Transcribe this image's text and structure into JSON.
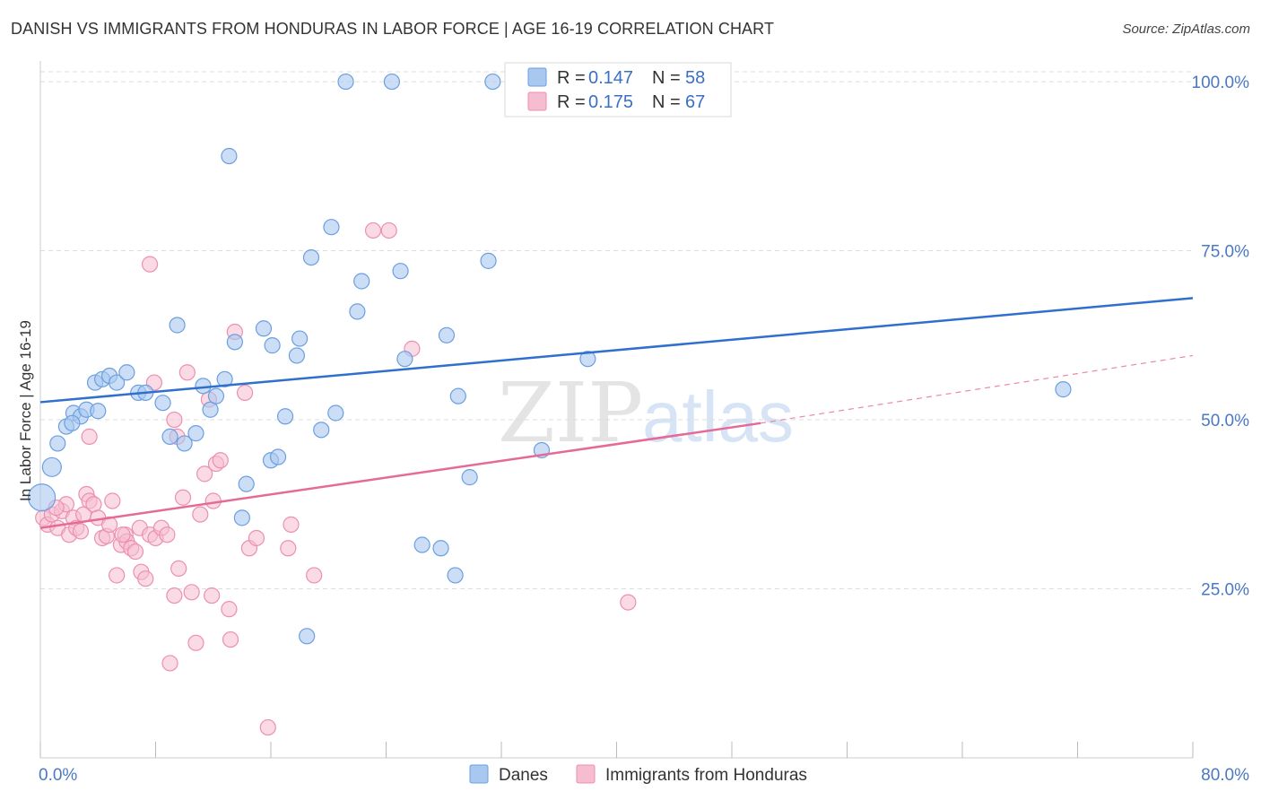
{
  "title": "DANISH VS IMMIGRANTS FROM HONDURAS IN LABOR FORCE | AGE 16-19 CORRELATION CHART",
  "source": "Source: ZipAtlas.com",
  "colors": {
    "danes_fill": "#a9c8f0",
    "danes_stroke": "#6b9fe0",
    "danes_line": "#2f6fce",
    "honduras_fill": "#f6bdd0",
    "honduras_stroke": "#ec8fb0",
    "honduras_line": "#e56a97",
    "grid": "#dddddd",
    "axis_text": "#4a78c4"
  },
  "legend": {
    "rows": [
      {
        "r_label": "R = ",
        "r_value": "0.147",
        "n_label": "N = ",
        "n_value": "58"
      },
      {
        "r_label": "R = ",
        "r_value": "0.175",
        "n_label": "N = ",
        "n_value": "67"
      }
    ]
  },
  "bottom_legend": [
    "Danes",
    "Immigrants from Honduras"
  ],
  "watermark": {
    "zip": "ZIP",
    "atlas": "atlas"
  },
  "chart_data": {
    "type": "scatter",
    "xlabel": "",
    "ylabel": "In Labor Force | Age 16-19",
    "xlim": [
      0,
      80
    ],
    "ylim": [
      0,
      102
    ],
    "x_tick_labels": [
      "0.0%",
      "80.0%"
    ],
    "y_ticks": [
      25,
      50,
      75,
      100
    ],
    "y_tick_labels": [
      "25.0%",
      "50.0%",
      "75.0%",
      "100.0%"
    ],
    "series": [
      {
        "name": "Danes",
        "R": 0.147,
        "N": 58,
        "trend": {
          "x_start": 0,
          "y_start": 52.6,
          "x_end": 80,
          "y_end": 68.0
        },
        "points": [
          [
            0.1,
            38.5
          ],
          [
            0.8,
            43
          ],
          [
            1.2,
            46.5
          ],
          [
            1.8,
            49
          ],
          [
            2.3,
            51
          ],
          [
            2.8,
            50.5
          ],
          [
            3.2,
            51.5
          ],
          [
            3.8,
            55.5
          ],
          [
            4.3,
            56
          ],
          [
            4.8,
            56.5
          ],
          [
            5.3,
            55.5
          ],
          [
            6.0,
            57
          ],
          [
            6.8,
            54
          ],
          [
            7.3,
            54
          ],
          [
            8.5,
            52.5
          ],
          [
            9.0,
            47.5
          ],
          [
            10.0,
            46.5
          ],
          [
            10.8,
            48
          ],
          [
            11.3,
            55
          ],
          [
            11.8,
            51.5
          ],
          [
            12.2,
            53.5
          ],
          [
            12.8,
            56
          ],
          [
            13.5,
            61.5
          ],
          [
            14.3,
            40.5
          ],
          [
            14.0,
            35.5
          ],
          [
            15.5,
            63.5
          ],
          [
            16.0,
            44
          ],
          [
            16.5,
            44.5
          ],
          [
            17.0,
            50.5
          ],
          [
            17.8,
            59.5
          ],
          [
            18.0,
            62
          ],
          [
            18.5,
            18
          ],
          [
            18.8,
            74
          ],
          [
            19.5,
            48.5
          ],
          [
            20.2,
            78.5
          ],
          [
            20.5,
            51
          ],
          [
            21.2,
            100
          ],
          [
            22.0,
            66
          ],
          [
            22.3,
            70.5
          ],
          [
            24.4,
            100
          ],
          [
            25.0,
            72
          ],
          [
            25.3,
            59
          ],
          [
            26.5,
            31.5
          ],
          [
            27.8,
            31
          ],
          [
            28.2,
            62.5
          ],
          [
            28.8,
            27
          ],
          [
            29.0,
            53.5
          ],
          [
            29.8,
            41.5
          ],
          [
            31.1,
            73.5
          ],
          [
            31.4,
            100
          ],
          [
            34.8,
            45.5
          ],
          [
            38.0,
            59
          ],
          [
            71.0,
            54.5
          ],
          [
            13.1,
            89
          ],
          [
            16.1,
            61
          ],
          [
            9.5,
            64
          ],
          [
            4.0,
            51.3
          ],
          [
            2.2,
            49.5
          ]
        ]
      },
      {
        "name": "Immigrants from Honduras",
        "R": 0.175,
        "N": 67,
        "trend": {
          "x_start": 0,
          "y_start": 34.0,
          "x_end": 50,
          "y_end": 49.5,
          "dash_x_end": 80,
          "dash_y_end": 59.5
        },
        "points": [
          [
            0.2,
            35.5
          ],
          [
            0.5,
            34.5
          ],
          [
            0.8,
            36
          ],
          [
            1.2,
            34
          ],
          [
            1.5,
            36.5
          ],
          [
            1.8,
            37.5
          ],
          [
            2.0,
            33
          ],
          [
            2.3,
            35.5
          ],
          [
            2.5,
            34
          ],
          [
            2.8,
            33.5
          ],
          [
            3.0,
            36
          ],
          [
            3.2,
            39
          ],
          [
            3.4,
            38
          ],
          [
            3.7,
            37.5
          ],
          [
            4.0,
            35.5
          ],
          [
            4.3,
            32.5
          ],
          [
            4.6,
            32.8
          ],
          [
            4.8,
            34.5
          ],
          [
            5.0,
            38
          ],
          [
            5.3,
            27
          ],
          [
            5.6,
            31.5
          ],
          [
            5.9,
            33
          ],
          [
            6.0,
            32
          ],
          [
            6.3,
            31
          ],
          [
            6.6,
            30.5
          ],
          [
            6.9,
            34
          ],
          [
            7.0,
            27.5
          ],
          [
            7.3,
            26.5
          ],
          [
            7.6,
            33
          ],
          [
            7.9,
            55.5
          ],
          [
            8.0,
            32.5
          ],
          [
            8.4,
            34
          ],
          [
            8.8,
            33
          ],
          [
            9.0,
            14
          ],
          [
            9.3,
            24
          ],
          [
            9.6,
            28
          ],
          [
            9.9,
            38.5
          ],
          [
            10.2,
            57
          ],
          [
            10.5,
            24.5
          ],
          [
            10.8,
            17
          ],
          [
            11.1,
            36
          ],
          [
            11.4,
            42
          ],
          [
            11.7,
            53
          ],
          [
            11.9,
            24
          ],
          [
            12.0,
            38
          ],
          [
            12.2,
            43.5
          ],
          [
            12.5,
            44
          ],
          [
            13.1,
            22
          ],
          [
            13.2,
            17.5
          ],
          [
            13.5,
            63
          ],
          [
            14.2,
            54
          ],
          [
            14.5,
            31
          ],
          [
            15.0,
            32.5
          ],
          [
            15.8,
            4.5
          ],
          [
            17.2,
            31
          ],
          [
            17.4,
            34.5
          ],
          [
            19.0,
            27
          ],
          [
            23.1,
            78
          ],
          [
            24.2,
            78
          ],
          [
            25.8,
            60.5
          ],
          [
            40.8,
            23
          ],
          [
            7.6,
            73
          ],
          [
            9.5,
            47.5
          ],
          [
            9.3,
            50
          ],
          [
            3.4,
            47.5
          ],
          [
            5.7,
            33
          ],
          [
            1.1,
            37
          ]
        ]
      }
    ]
  }
}
